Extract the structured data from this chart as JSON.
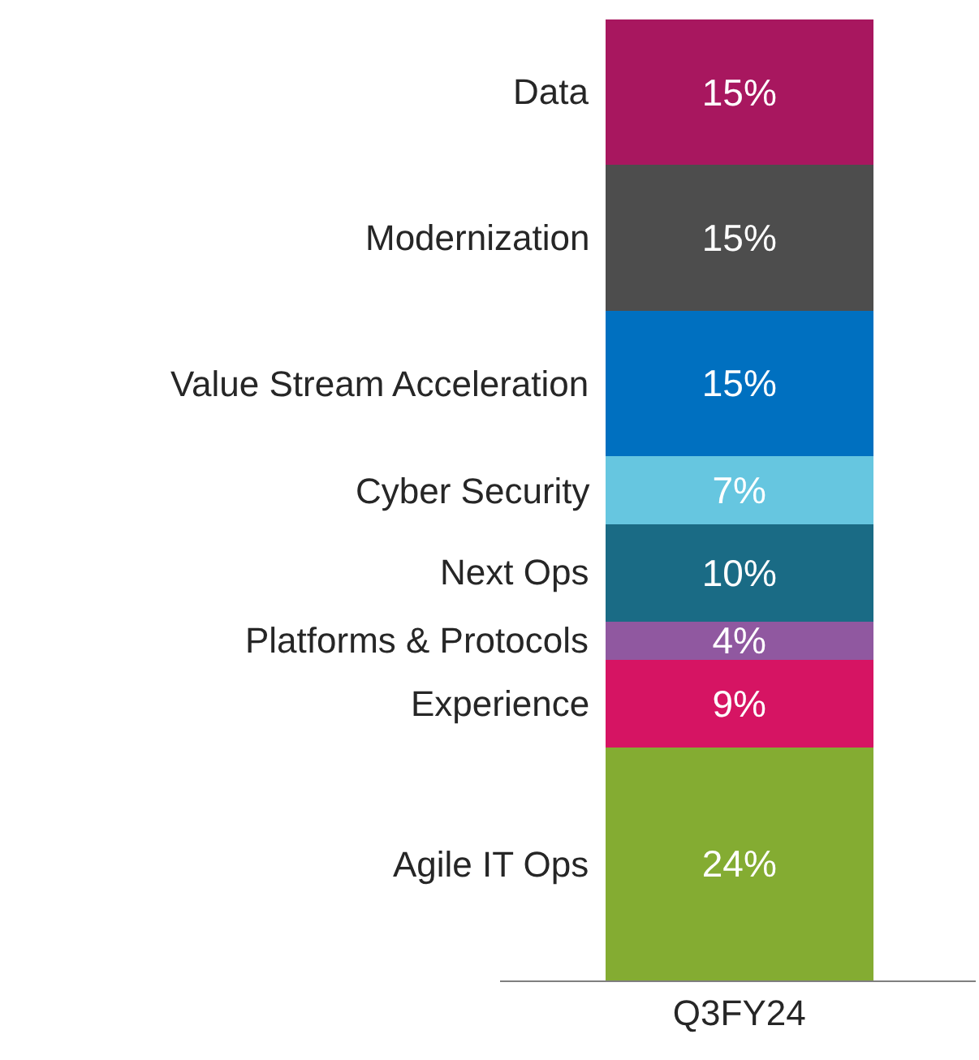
{
  "chart_data": {
    "type": "bar",
    "stacked": true,
    "categories": [
      "Q3FY24"
    ],
    "legend": false,
    "series": [
      {
        "name": "Agile IT Ops",
        "color": "#84ac32",
        "values": [
          24
        ],
        "value_labels": [
          "24%"
        ]
      },
      {
        "name": "Experience",
        "color": "#d61463",
        "values": [
          9
        ],
        "value_labels": [
          "9%"
        ]
      },
      {
        "name": "Platforms & Protocols",
        "color": "#9058a0",
        "values": [
          4
        ],
        "value_labels": [
          "4%"
        ]
      },
      {
        "name": "Next Ops",
        "color": "#1a6b85",
        "values": [
          10
        ],
        "value_labels": [
          "10%"
        ]
      },
      {
        "name": "Cyber Security",
        "color": "#66c6e0",
        "values": [
          7
        ],
        "value_labels": [
          "7%"
        ]
      },
      {
        "name": "Value Stream Acceleration",
        "color": "#0070c0",
        "values": [
          15
        ],
        "value_labels": [
          "15%"
        ]
      },
      {
        "name": "Modernization",
        "color": "#4d4d4d",
        "values": [
          15
        ],
        "value_labels": [
          "15%"
        ]
      },
      {
        "name": "Data",
        "color": "#a8175f",
        "values": [
          15
        ],
        "value_labels": [
          "15%"
        ]
      }
    ]
  }
}
